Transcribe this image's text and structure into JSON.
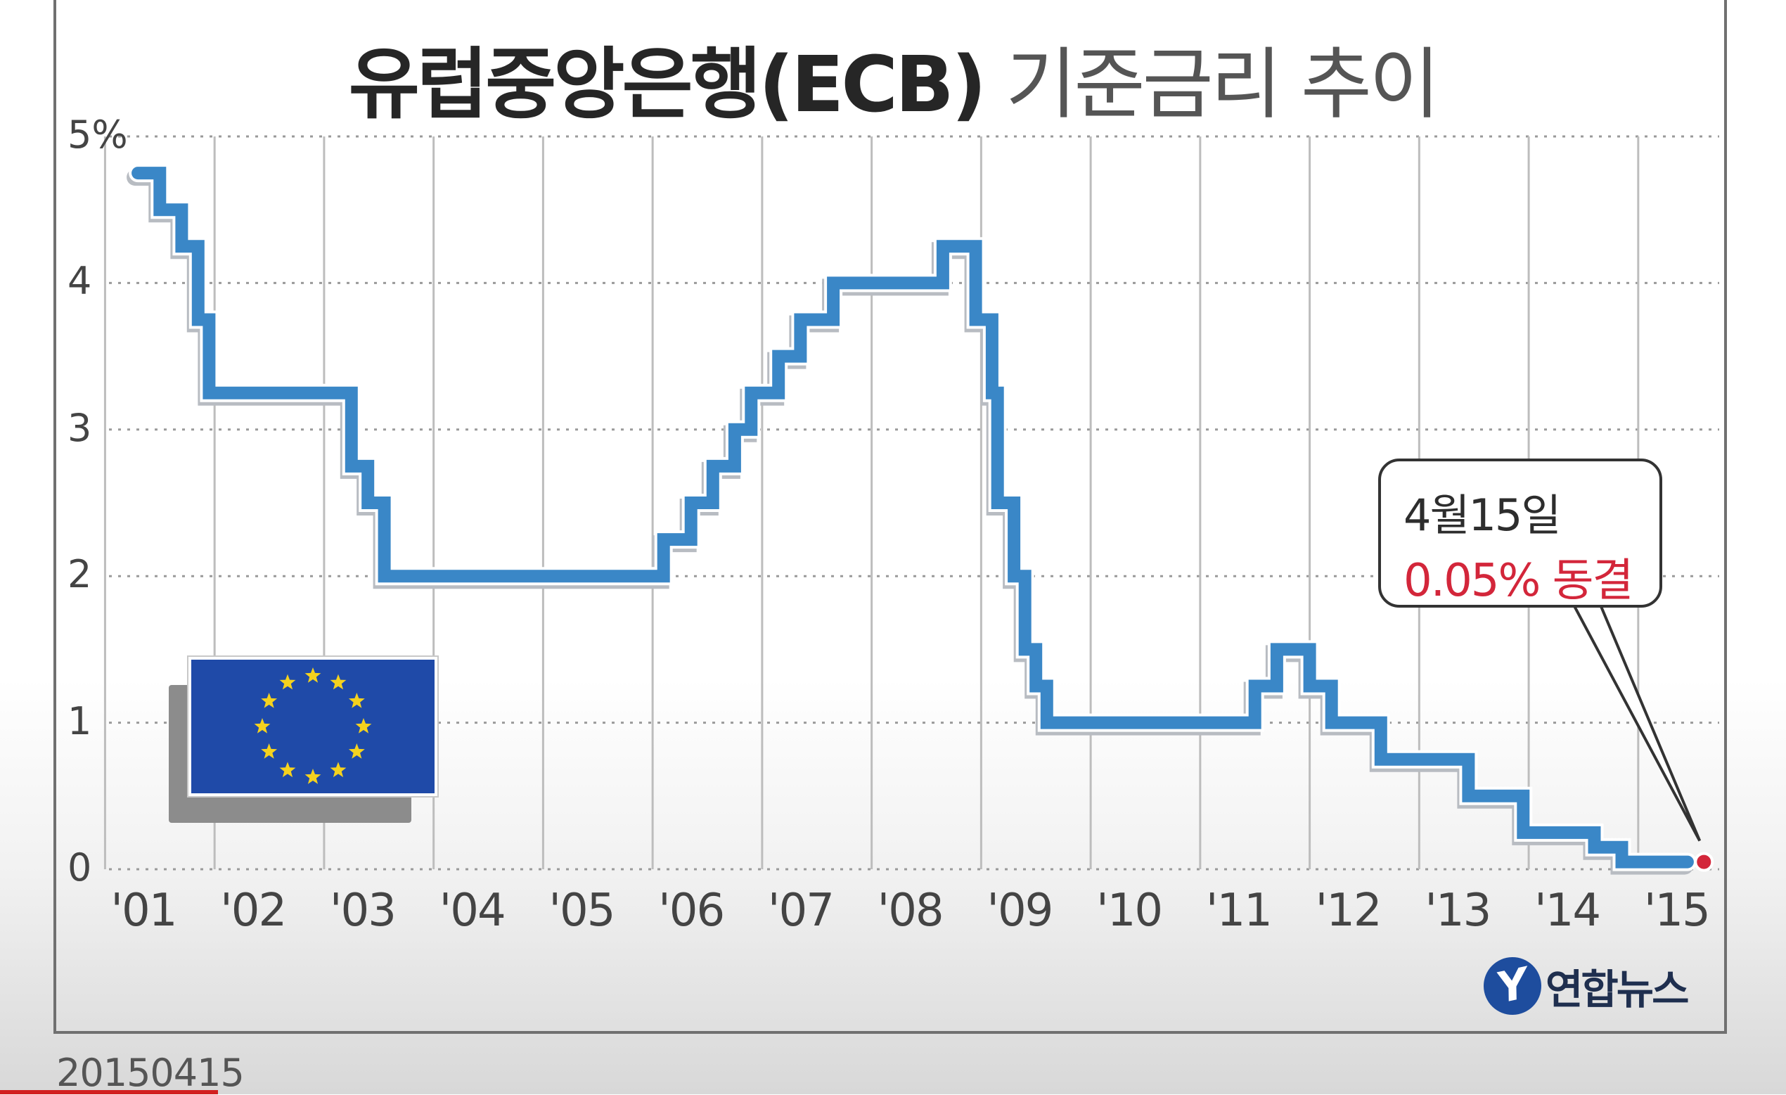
{
  "title": {
    "bold": "유럽중앙은행(ECB)",
    "light": "기준금리 추이"
  },
  "chart_data": {
    "type": "line",
    "step": true,
    "title": "유럽중앙은행(ECB) 기준금리 추이",
    "xlabel": "",
    "ylabel": "",
    "ylim": [
      0,
      5
    ],
    "xlim": [
      2000.75,
      2015.55
    ],
    "grid": true,
    "y_tick_values": [
      0,
      1,
      2,
      3,
      4,
      5
    ],
    "y_tick_labels": [
      "0",
      "1",
      "2",
      "3",
      "4",
      "5%"
    ],
    "x_tick_values": [
      2001,
      2002,
      2003,
      2004,
      2005,
      2006,
      2007,
      2008,
      2009,
      2010,
      2011,
      2012,
      2013,
      2014,
      2015
    ],
    "x_tick_labels": [
      "'01",
      "'02",
      "'03",
      "'04",
      "'05",
      "'06",
      "'07",
      "'08",
      "'09",
      "'10",
      "'11",
      "'12",
      "'13",
      "'14",
      "'15"
    ],
    "series": [
      {
        "color": "#3a87c7",
        "points": [
          [
            2000.95,
            4.75
          ],
          [
            2001.15,
            4.75
          ],
          [
            2001.15,
            4.5
          ],
          [
            2001.35,
            4.5
          ],
          [
            2001.35,
            4.25
          ],
          [
            2001.5,
            4.25
          ],
          [
            2001.5,
            3.75
          ],
          [
            2001.6,
            3.75
          ],
          [
            2001.6,
            3.25
          ],
          [
            2002.9,
            3.25
          ],
          [
            2002.9,
            2.75
          ],
          [
            2003.05,
            2.75
          ],
          [
            2003.05,
            2.5
          ],
          [
            2003.2,
            2.5
          ],
          [
            2003.2,
            2.0
          ],
          [
            2005.75,
            2.0
          ],
          [
            2005.75,
            2.25
          ],
          [
            2006.0,
            2.25
          ],
          [
            2006.0,
            2.5
          ],
          [
            2006.2,
            2.5
          ],
          [
            2006.2,
            2.75
          ],
          [
            2006.4,
            2.75
          ],
          [
            2006.4,
            3.0
          ],
          [
            2006.55,
            3.0
          ],
          [
            2006.55,
            3.25
          ],
          [
            2006.8,
            3.25
          ],
          [
            2006.8,
            3.5
          ],
          [
            2007.0,
            3.5
          ],
          [
            2007.0,
            3.75
          ],
          [
            2007.3,
            3.75
          ],
          [
            2007.3,
            4.0
          ],
          [
            2008.3,
            4.0
          ],
          [
            2008.3,
            4.25
          ],
          [
            2008.6,
            4.25
          ],
          [
            2008.6,
            3.75
          ],
          [
            2008.75,
            3.75
          ],
          [
            2008.75,
            3.25
          ],
          [
            2008.8,
            3.25
          ],
          [
            2008.8,
            2.5
          ],
          [
            2008.95,
            2.5
          ],
          [
            2008.95,
            2.0
          ],
          [
            2009.05,
            2.0
          ],
          [
            2009.05,
            1.5
          ],
          [
            2009.15,
            1.5
          ],
          [
            2009.15,
            1.25
          ],
          [
            2009.25,
            1.25
          ],
          [
            2009.25,
            1.0
          ],
          [
            2011.15,
            1.0
          ],
          [
            2011.15,
            1.25
          ],
          [
            2011.35,
            1.25
          ],
          [
            2011.35,
            1.5
          ],
          [
            2011.65,
            1.5
          ],
          [
            2011.65,
            1.25
          ],
          [
            2011.85,
            1.25
          ],
          [
            2011.85,
            1.0
          ],
          [
            2012.3,
            1.0
          ],
          [
            2012.3,
            0.75
          ],
          [
            2013.1,
            0.75
          ],
          [
            2013.1,
            0.5
          ],
          [
            2013.6,
            0.5
          ],
          [
            2013.6,
            0.25
          ],
          [
            2014.25,
            0.25
          ],
          [
            2014.25,
            0.15
          ],
          [
            2014.5,
            0.15
          ],
          [
            2014.5,
            0.05
          ],
          [
            2015.1,
            0.05
          ]
        ]
      }
    ],
    "markers": [
      {
        "x": 2015.25,
        "y": 0.05,
        "color": "#d3263a"
      }
    ],
    "annotations": [
      {
        "date_label": "4월15일",
        "value_label": "0.05% 동결"
      }
    ]
  },
  "logo": {
    "mark": "Y",
    "text": "연합뉴스"
  },
  "date_stamp": "20150415",
  "colors": {
    "line": "#3a87c7",
    "highlight": "#d3263a",
    "flag_blue": "#1f4aa8",
    "flag_star": "#f5d21e"
  }
}
